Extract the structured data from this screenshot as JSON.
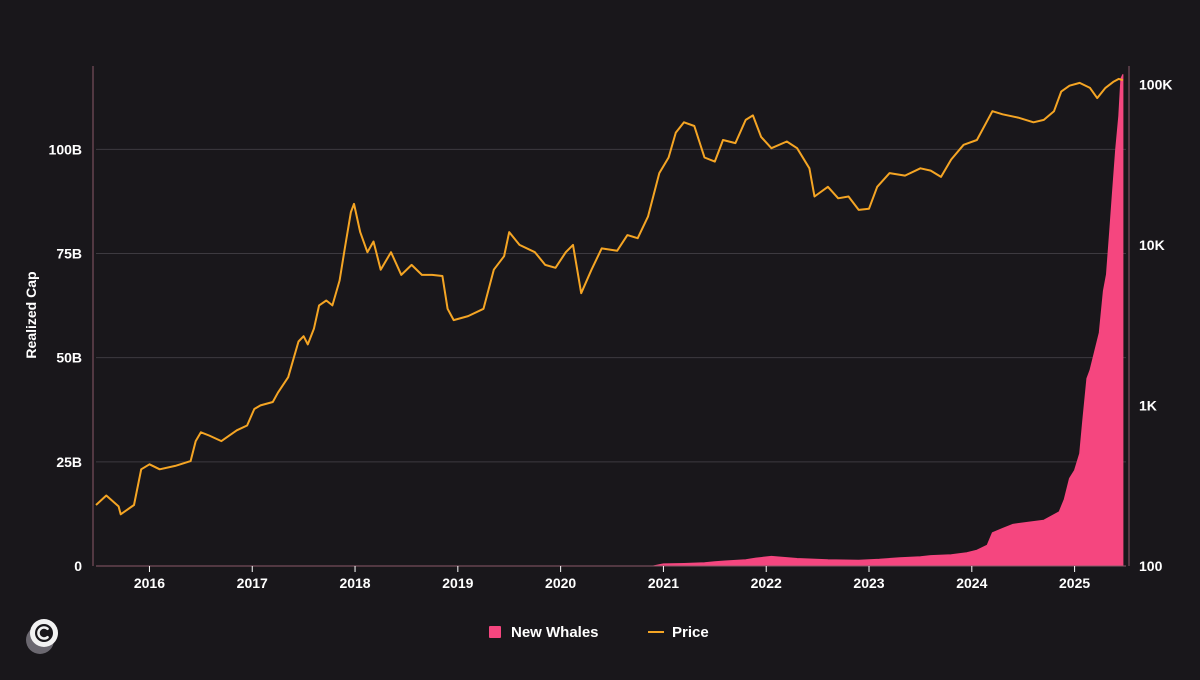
{
  "chart_data": {
    "type": "area+line",
    "title": "",
    "ylabel_left": "Realized Cap",
    "ylabel_right": "",
    "x_ticks": [
      "2016",
      "2017",
      "2018",
      "2019",
      "2020",
      "2021",
      "2022",
      "2023",
      "2024",
      "2025"
    ],
    "x_range": [
      2015.48,
      2025.5
    ],
    "y_left": {
      "range": [
        0,
        120
      ],
      "unit": "B",
      "ticks": [
        0,
        25,
        50,
        75,
        100
      ],
      "tick_labels": [
        "0",
        "25B",
        "50B",
        "75B",
        "100B"
      ]
    },
    "y_right": {
      "scale": "log",
      "range": [
        100,
        130000
      ],
      "ticks": [
        100,
        1000,
        10000,
        100000
      ],
      "tick_labels": [
        "100",
        "1K",
        "10K",
        "100K"
      ]
    },
    "grid": "horizontal",
    "legend_position": "bottom-center",
    "colors": {
      "background": "#19171b",
      "new_whales": "#f5467f",
      "price": "#f5a524",
      "grid": "#3d3a40",
      "axis": "#8a5a68"
    },
    "series": [
      {
        "name": "New Whales",
        "type": "area",
        "axis": "left",
        "unit": "USD billions",
        "points": [
          [
            2015.5,
            0
          ],
          [
            2016.0,
            0
          ],
          [
            2017.0,
            0
          ],
          [
            2018.0,
            0
          ],
          [
            2019.0,
            0
          ],
          [
            2020.0,
            0
          ],
          [
            2020.9,
            0
          ],
          [
            2021.0,
            0.5
          ],
          [
            2021.2,
            0.6
          ],
          [
            2021.4,
            0.8
          ],
          [
            2021.5,
            1.0
          ],
          [
            2021.6,
            1.2
          ],
          [
            2021.8,
            1.5
          ],
          [
            2021.9,
            1.9
          ],
          [
            2022.05,
            2.3
          ],
          [
            2022.3,
            1.8
          ],
          [
            2022.6,
            1.5
          ],
          [
            2022.9,
            1.4
          ],
          [
            2023.1,
            1.6
          ],
          [
            2023.3,
            2.0
          ],
          [
            2023.5,
            2.2
          ],
          [
            2023.6,
            2.5
          ],
          [
            2023.8,
            2.7
          ],
          [
            2023.95,
            3.2
          ],
          [
            2024.05,
            3.8
          ],
          [
            2024.15,
            5.0
          ],
          [
            2024.2,
            8.0
          ],
          [
            2024.3,
            9.0
          ],
          [
            2024.4,
            10.0
          ],
          [
            2024.55,
            10.5
          ],
          [
            2024.7,
            11.0
          ],
          [
            2024.85,
            13.0
          ],
          [
            2024.9,
            16.0
          ],
          [
            2024.95,
            21.0
          ],
          [
            2025.0,
            23.0
          ],
          [
            2025.05,
            27.0
          ],
          [
            2025.08,
            35.0
          ],
          [
            2025.12,
            45.0
          ],
          [
            2025.15,
            47.0
          ],
          [
            2025.2,
            52.0
          ],
          [
            2025.24,
            56.0
          ],
          [
            2025.28,
            66.0
          ],
          [
            2025.31,
            70.0
          ],
          [
            2025.34,
            80.0
          ],
          [
            2025.37,
            90.0
          ],
          [
            2025.4,
            100.0
          ],
          [
            2025.43,
            108.0
          ],
          [
            2025.45,
            117.0
          ],
          [
            2025.47,
            118.0
          ]
        ]
      },
      {
        "name": "Price",
        "type": "line",
        "axis": "right",
        "unit": "USD",
        "points": [
          [
            2015.48,
            240
          ],
          [
            2015.58,
            275
          ],
          [
            2015.7,
            235
          ],
          [
            2015.72,
            210
          ],
          [
            2015.85,
            240
          ],
          [
            2015.92,
            400
          ],
          [
            2016.0,
            430
          ],
          [
            2016.1,
            400
          ],
          [
            2016.25,
            420
          ],
          [
            2016.4,
            450
          ],
          [
            2016.45,
            600
          ],
          [
            2016.5,
            680
          ],
          [
            2016.58,
            650
          ],
          [
            2016.7,
            600
          ],
          [
            2016.85,
            700
          ],
          [
            2016.95,
            750
          ],
          [
            2017.02,
            950
          ],
          [
            2017.08,
            1000
          ],
          [
            2017.2,
            1050
          ],
          [
            2017.25,
            1200
          ],
          [
            2017.35,
            1500
          ],
          [
            2017.45,
            2500
          ],
          [
            2017.5,
            2700
          ],
          [
            2017.54,
            2400
          ],
          [
            2017.6,
            3000
          ],
          [
            2017.65,
            4200
          ],
          [
            2017.72,
            4500
          ],
          [
            2017.78,
            4200
          ],
          [
            2017.85,
            6000
          ],
          [
            2017.9,
            9500
          ],
          [
            2017.96,
            16000
          ],
          [
            2017.99,
            18000
          ],
          [
            2018.05,
            12000
          ],
          [
            2018.12,
            9000
          ],
          [
            2018.18,
            10500
          ],
          [
            2018.25,
            7000
          ],
          [
            2018.35,
            9000
          ],
          [
            2018.45,
            6500
          ],
          [
            2018.55,
            7500
          ],
          [
            2018.65,
            6500
          ],
          [
            2018.75,
            6500
          ],
          [
            2018.85,
            6400
          ],
          [
            2018.9,
            4000
          ],
          [
            2018.96,
            3400
          ],
          [
            2019.1,
            3600
          ],
          [
            2019.25,
            4000
          ],
          [
            2019.35,
            7000
          ],
          [
            2019.45,
            8500
          ],
          [
            2019.5,
            12000
          ],
          [
            2019.6,
            10000
          ],
          [
            2019.75,
            9000
          ],
          [
            2019.85,
            7500
          ],
          [
            2019.95,
            7200
          ],
          [
            2020.05,
            9000
          ],
          [
            2020.12,
            10000
          ],
          [
            2020.2,
            5000
          ],
          [
            2020.3,
            7000
          ],
          [
            2020.4,
            9500
          ],
          [
            2020.55,
            9200
          ],
          [
            2020.65,
            11500
          ],
          [
            2020.75,
            11000
          ],
          [
            2020.85,
            15000
          ],
          [
            2020.96,
            28000
          ],
          [
            2021.05,
            35000
          ],
          [
            2021.12,
            50000
          ],
          [
            2021.2,
            58000
          ],
          [
            2021.3,
            55000
          ],
          [
            2021.4,
            35000
          ],
          [
            2021.5,
            33000
          ],
          [
            2021.58,
            45000
          ],
          [
            2021.7,
            43000
          ],
          [
            2021.8,
            60000
          ],
          [
            2021.87,
            64000
          ],
          [
            2021.95,
            47000
          ],
          [
            2022.05,
            40000
          ],
          [
            2022.2,
            44000
          ],
          [
            2022.3,
            40000
          ],
          [
            2022.42,
            30000
          ],
          [
            2022.47,
            20000
          ],
          [
            2022.6,
            23000
          ],
          [
            2022.7,
            19500
          ],
          [
            2022.8,
            20000
          ],
          [
            2022.9,
            16500
          ],
          [
            2023.0,
            16800
          ],
          [
            2023.08,
            23000
          ],
          [
            2023.2,
            28000
          ],
          [
            2023.35,
            27000
          ],
          [
            2023.5,
            30000
          ],
          [
            2023.6,
            29000
          ],
          [
            2023.7,
            26500
          ],
          [
            2023.8,
            34000
          ],
          [
            2023.92,
            42000
          ],
          [
            2024.05,
            45000
          ],
          [
            2024.2,
            68000
          ],
          [
            2024.3,
            65000
          ],
          [
            2024.45,
            62000
          ],
          [
            2024.6,
            58000
          ],
          [
            2024.7,
            60000
          ],
          [
            2024.8,
            68000
          ],
          [
            2024.87,
            90000
          ],
          [
            2024.95,
            98000
          ],
          [
            2025.05,
            102000
          ],
          [
            2025.15,
            95000
          ],
          [
            2025.22,
            82000
          ],
          [
            2025.3,
            95000
          ],
          [
            2025.38,
            104000
          ],
          [
            2025.43,
            108000
          ],
          [
            2025.47,
            106000
          ]
        ]
      }
    ]
  },
  "logo": {
    "icon": "circle-c-logo-icon"
  }
}
